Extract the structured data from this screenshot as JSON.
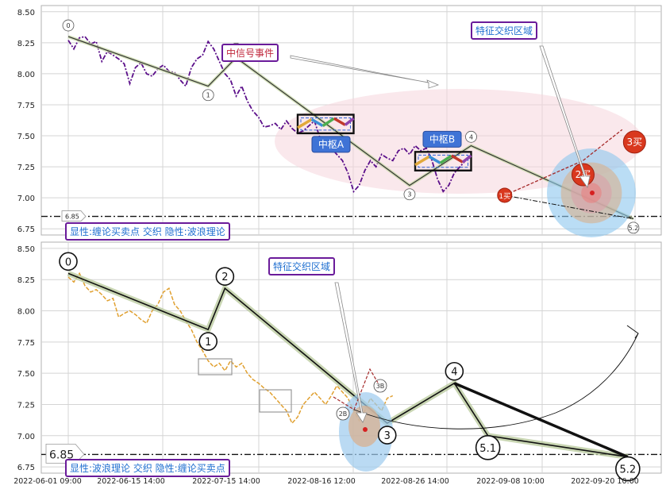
{
  "colors": {
    "grid": "#d4d4d4",
    "frame": "#b0b0b0",
    "price_top": "#5b0f8a",
    "price_bottom": "#e0a030",
    "bi_line": "#333333",
    "zhongshu": "#2b5fd6",
    "ann_border": "#6a1b9a",
    "ann_text": "#1f6fd0",
    "red_text": "#c0283c",
    "buy_fill": "#d9381e",
    "buy_text": "#ffffff"
  },
  "chart_data": [
    {
      "type": "line",
      "name": "top-panel",
      "ylim": [
        6.7,
        8.55
      ],
      "yticks": [
        "8.50",
        "8.25",
        "8.00",
        "7.75",
        "7.50",
        "7.25",
        "7.00",
        "6.75"
      ],
      "ytick_values": [
        8.5,
        8.25,
        8.0,
        7.75,
        7.5,
        7.25,
        7.0,
        6.75
      ],
      "hline": {
        "value": 6.85,
        "label": "6.85"
      },
      "price": [
        8.27,
        8.2,
        8.29,
        8.3,
        8.24,
        8.26,
        8.1,
        8.18,
        8.15,
        8.12,
        8.08,
        7.92,
        8.05,
        8.09,
        8.0,
        7.98,
        8.04,
        8.07,
        8.02,
        8.01,
        7.95,
        7.9,
        8.05,
        8.12,
        8.15,
        8.26,
        8.2,
        8.1,
        8.0,
        7.95,
        7.82,
        7.9,
        7.78,
        7.7,
        7.65,
        7.57,
        7.58,
        7.6,
        7.55,
        7.62,
        7.56,
        7.52,
        7.54,
        7.58,
        7.62,
        7.48,
        7.45,
        7.4,
        7.35,
        7.3,
        7.2,
        7.05,
        7.1,
        7.22,
        7.3,
        7.25,
        7.35,
        7.32,
        7.3,
        7.38,
        7.4,
        7.35,
        7.42,
        7.38,
        7.4,
        7.3,
        7.15,
        7.05,
        7.1,
        7.2,
        7.25,
        7.3,
        7.33
      ],
      "bi_points": [
        [
          "0",
          0,
          8.3
        ],
        [
          "1",
          25,
          7.9
        ],
        [
          "2",
          30,
          8.13
        ],
        [
          "3",
          61,
          7.1
        ],
        [
          "4",
          72,
          7.42
        ],
        [
          "5.2",
          101,
          6.83
        ]
      ],
      "bi_labels": [
        "0",
        "1",
        "2",
        "3",
        "4",
        "5.2"
      ],
      "zhongshu": [
        {
          "label": "中枢A",
          "x0": 41,
          "x1": 51,
          "y0": 7.52,
          "y1": 7.67
        },
        {
          "label": "中枢B",
          "x0": 62,
          "x1": 72,
          "y0": 7.22,
          "y1": 7.37
        }
      ],
      "buy_points": [
        {
          "label": "1买",
          "x": 78,
          "y": 7.02
        },
        {
          "label": "2买",
          "x": 92,
          "y": 7.11
        },
        {
          "label": "3买",
          "x": 99.5,
          "y": 7.45
        }
      ],
      "annotations": {
        "mid_signal": "中信号事件",
        "feature_zone": "特征交织区域",
        "legend": "显性:缠论买卖点 交织 隐性:波浪理论"
      }
    },
    {
      "type": "line",
      "name": "bottom-panel",
      "ylim": [
        6.7,
        8.55
      ],
      "yticks": [
        "8.50",
        "8.25",
        "8.00",
        "7.75",
        "7.50",
        "7.25",
        "7.00",
        "6.75"
      ],
      "ytick_values": [
        8.5,
        8.25,
        8.0,
        7.75,
        7.5,
        7.25,
        7.0,
        6.75
      ],
      "hline": {
        "value": 6.85,
        "label": "6.85"
      },
      "price": [
        8.27,
        8.23,
        8.3,
        8.2,
        8.15,
        8.17,
        8.13,
        8.08,
        8.1,
        7.95,
        7.98,
        8.0,
        7.97,
        7.93,
        7.9,
        8.0,
        8.05,
        8.15,
        8.18,
        8.05,
        8.0,
        7.92,
        7.85,
        7.75,
        7.68,
        7.6,
        7.55,
        7.58,
        7.52,
        7.6,
        7.55,
        7.58,
        7.5,
        7.45,
        7.42,
        7.38,
        7.35,
        7.3,
        7.25,
        7.2,
        7.1,
        7.15,
        7.25,
        7.3,
        7.35,
        7.3,
        7.25,
        7.32,
        7.4,
        7.35,
        7.3,
        7.2,
        7.12,
        7.2,
        7.3,
        7.25,
        7.2,
        7.3,
        7.32
      ],
      "wave_points": [
        [
          "0",
          0,
          8.3
        ],
        [
          "1",
          25,
          7.85
        ],
        [
          "2",
          28,
          8.18
        ],
        [
          "3",
          57,
          7.1
        ],
        [
          "4",
          69,
          7.42
        ],
        [
          "5.1",
          75,
          7.0
        ],
        [
          "5.2",
          100,
          6.83
        ]
      ],
      "wave_labels": [
        "0",
        "1",
        "2",
        "3",
        "4",
        "5.1",
        "5.2"
      ],
      "buy_labels": [
        "2B",
        "3B"
      ],
      "x_ticks": [
        "2022-06-01 09:00",
        "2022-06-15 14:00",
        "2022-07-15 14:00",
        "2022-08-16 12:00",
        "2022-08-26 14:00",
        "2022-09-08 10:00",
        "2022-09-20 10:00"
      ],
      "annotations": {
        "feature_zone": "特征交织区域",
        "legend": "显性:波浪理论 交织 隐性:缠论买卖点"
      }
    }
  ]
}
